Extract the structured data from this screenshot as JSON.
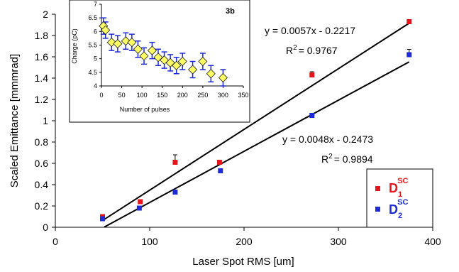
{
  "colors": {
    "d1": "#e8141c",
    "d2": "#1f2bd6",
    "line": "#000000",
    "inset_marker": "#ffff66",
    "inset_errorbar": "#1f2bd6"
  },
  "chart_data": [
    {
      "type": "scatter",
      "title": "",
      "xlabel": "Laser Spot RMS  [um]",
      "ylabel": "Scaled Emittance [mmmrad]",
      "xlim": [
        0,
        400
      ],
      "ylim": [
        0,
        2
      ],
      "xticks": [
        "0",
        "100",
        "200",
        "300",
        "400"
      ],
      "yticks": [
        "0",
        "0.2",
        "0.4",
        "0.6",
        "0.8",
        "1",
        "1.2",
        "1.4",
        "1.6",
        "1.8",
        "2"
      ],
      "grid": false,
      "legend_position": "bottom-right",
      "series": [
        {
          "name": "D1SC",
          "label_main": "D",
          "label_sub": "1",
          "label_sup": "SC",
          "color": "#e8141c",
          "x": [
            50,
            90,
            127,
            174,
            272,
            375
          ],
          "y": [
            0.1,
            0.24,
            0.61,
            0.61,
            1.43,
            1.93
          ],
          "err": [
            0.02,
            0.02,
            0.07,
            0.01,
            0.03,
            0.02
          ],
          "fit": {
            "slope": 0.0057,
            "intercept": -0.2217,
            "x_range": [
              52,
              375
            ],
            "equation": "y = 0.0057x - 0.2217",
            "r2": "R2 = 0.9767"
          }
        },
        {
          "name": "D2SC",
          "label_main": "D",
          "label_sub": "2",
          "label_sup": "SC",
          "color": "#1f2bd6",
          "x": [
            50,
            89,
            127,
            175,
            272,
            375
          ],
          "y": [
            0.08,
            0.18,
            0.33,
            0.53,
            1.05,
            1.62
          ],
          "err": [
            0.01,
            0.02,
            0.02,
            0.02,
            0.01,
            0.05
          ],
          "fit": {
            "slope": 0.0048,
            "intercept": -0.2473,
            "x_range": [
              52,
              375
            ],
            "equation": "y = 0.0048x - 0.2473",
            "r2": "R2 = 0.9894"
          }
        }
      ],
      "annotations": {
        "fit1_equation": "y = 0.0057x - 0.2217",
        "fit1_r2": "= 0.9767",
        "fit2_equation": "y = 0.0048x - 0.2473",
        "fit2_r2": "= 0.9894",
        "r_letter": "R",
        "r_sup": "2"
      }
    },
    {
      "type": "scatter",
      "title": "3b",
      "xlabel": "Number of pulses",
      "ylabel": "Charge (pC)",
      "xlim": [
        0,
        350
      ],
      "ylim": [
        4,
        7
      ],
      "xticks": [
        "0",
        "50",
        "100",
        "150",
        "200",
        "250",
        "300",
        "350"
      ],
      "yticks": [
        "4",
        "4.5",
        "5",
        "5.5",
        "6",
        "6.5",
        "7"
      ],
      "grid": false,
      "series": [
        {
          "name": "",
          "x": [
            5,
            10,
            25,
            40,
            60,
            75,
            90,
            105,
            125,
            140,
            155,
            170,
            185,
            200,
            225,
            250,
            270,
            300
          ],
          "y": [
            6.2,
            6.05,
            5.6,
            5.55,
            5.65,
            5.6,
            5.35,
            5.1,
            5.3,
            5.05,
            4.95,
            4.85,
            4.75,
            4.9,
            4.6,
            4.9,
            4.45,
            4.3
          ],
          "err": [
            0.3,
            0.3,
            0.3,
            0.3,
            0.3,
            0.3,
            0.3,
            0.3,
            0.3,
            0.3,
            0.3,
            0.3,
            0.3,
            0.3,
            0.3,
            0.3,
            0.3,
            0.3
          ]
        }
      ]
    }
  ]
}
